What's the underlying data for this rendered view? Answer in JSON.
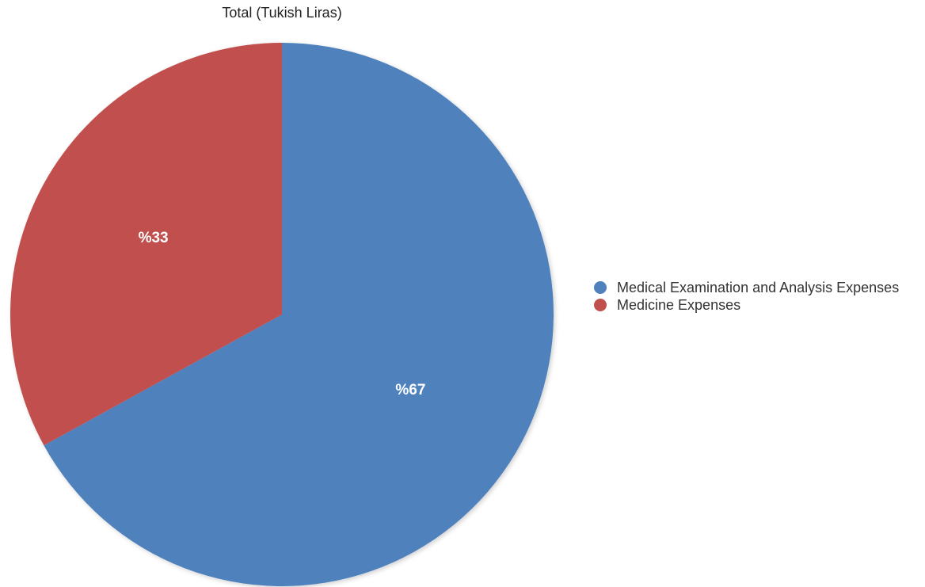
{
  "chart_data": {
    "type": "pie",
    "title": "Total (Tukish Liras)",
    "slices": [
      {
        "name": "Medical Examination and Analysis Expenses",
        "value": 67,
        "label": "%67",
        "color": "#4f81bd"
      },
      {
        "name": "Medicine Expenses",
        "value": 33,
        "label": "%33",
        "color": "#c0504d"
      }
    ],
    "legend_position": "right"
  }
}
